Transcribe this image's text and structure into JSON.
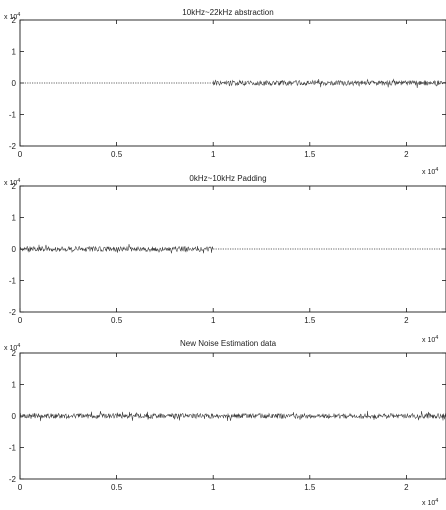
{
  "chart_data": [
    {
      "type": "line",
      "title": "10kHz~22kHz abstraction",
      "xlim": [
        0,
        22050
      ],
      "ylim": [
        -2,
        2
      ],
      "x_ticks": [
        "0",
        "0.5",
        "1",
        "1.5",
        "2"
      ],
      "x_tick_values": [
        0,
        5000,
        10000,
        15000,
        20000
      ],
      "x_multiplier": "x 10",
      "x_exponent": "4",
      "y_ticks": [
        "2",
        "1",
        "0",
        "-1",
        "-2"
      ],
      "y_tick_values": [
        2,
        1,
        0,
        -1,
        -2
      ],
      "y_multiplier": "x 10",
      "y_exponent": "4",
      "series": [
        {
          "segments": [
            {
              "x_range": [
                0,
                10000
              ],
              "kind": "zero",
              "amplitude": 0
            },
            {
              "x_range": [
                10000,
                22050
              ],
              "kind": "noise",
              "amplitude": 0.08
            }
          ]
        }
      ]
    },
    {
      "type": "line",
      "title": "0kHz~10kHz Padding",
      "xlim": [
        0,
        22050
      ],
      "ylim": [
        -2,
        2
      ],
      "x_ticks": [
        "0",
        "0.5",
        "1",
        "1.5",
        "2"
      ],
      "x_tick_values": [
        0,
        5000,
        10000,
        15000,
        20000
      ],
      "x_multiplier": "x 10",
      "x_exponent": "4",
      "y_ticks": [
        "2",
        "1",
        "0",
        "-1",
        "-2"
      ],
      "y_tick_values": [
        2,
        1,
        0,
        -1,
        -2
      ],
      "y_multiplier": "x 10",
      "y_exponent": "4",
      "series": [
        {
          "segments": [
            {
              "x_range": [
                0,
                10000
              ],
              "kind": "noise",
              "amplitude": 0.08
            },
            {
              "x_range": [
                10000,
                22050
              ],
              "kind": "zero",
              "amplitude": 0
            }
          ]
        }
      ]
    },
    {
      "type": "line",
      "title": "New Noise Estimation data",
      "xlim": [
        0,
        22050
      ],
      "ylim": [
        -2,
        2
      ],
      "x_ticks": [
        "0",
        "0.5",
        "1",
        "1.5",
        "2"
      ],
      "x_tick_values": [
        0,
        5000,
        10000,
        15000,
        20000
      ],
      "x_multiplier": "x 10",
      "x_exponent": "4",
      "y_ticks": [
        "2",
        "1",
        "0",
        "-1",
        "-2"
      ],
      "y_tick_values": [
        2,
        1,
        0,
        -1,
        -2
      ],
      "y_multiplier": "x 10",
      "y_exponent": "4",
      "series": [
        {
          "segments": [
            {
              "x_range": [
                0,
                22050
              ],
              "kind": "noise",
              "amplitude": 0.08
            }
          ]
        }
      ]
    }
  ]
}
